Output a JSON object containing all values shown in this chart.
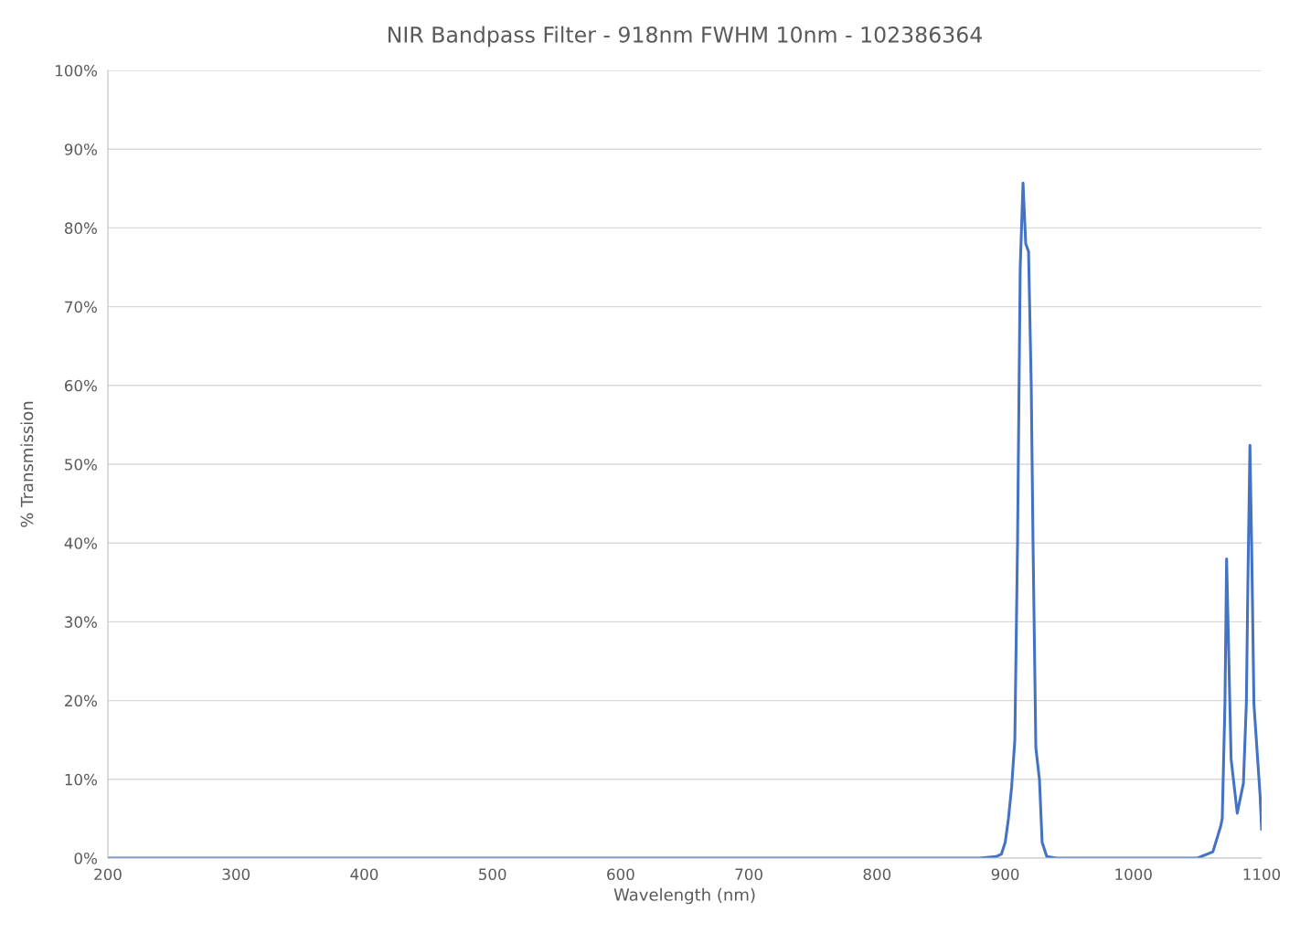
{
  "chart_data": {
    "type": "line",
    "title": "NIR Bandpass Filter - 918nm FWHM 10nm - 102386364",
    "xlabel": "Wavelength (nm)",
    "ylabel": "% Transmission",
    "x": [
      200,
      300,
      400,
      500,
      600,
      700,
      800,
      880,
      893,
      897,
      900,
      902.5,
      905,
      907.5,
      909.6,
      911.7,
      913.9,
      916,
      918.2,
      920.3,
      921.7,
      923.9,
      926.7,
      928.8,
      932.4,
      940,
      1000,
      1050,
      1062,
      1068,
      1069.3,
      1071.4,
      1072.7,
      1073.8,
      1076.2,
      1081,
      1085.8,
      1088.1,
      1089.3,
      1090.9,
      1092.3,
      1094,
      1096.4,
      1098.8,
      1100
    ],
    "series": [
      {
        "color": "#4472c4",
        "values": [
          0,
          0,
          0,
          0,
          0,
          0,
          0,
          0,
          0.2,
          0.5,
          2,
          5,
          9,
          15,
          40,
          75,
          85.7,
          78,
          77,
          60,
          40,
          14,
          10,
          2,
          0.2,
          0,
          0,
          0,
          0.8,
          4,
          5,
          19.6,
          38,
          30,
          12.6,
          5.7,
          9.5,
          19.6,
          35,
          52.4,
          39,
          19.6,
          13.8,
          8,
          3.7
        ]
      }
    ],
    "xlim": [
      200,
      1100
    ],
    "xticks": [
      200,
      300,
      400,
      500,
      600,
      700,
      800,
      900,
      1000,
      1100
    ],
    "ylim": [
      0,
      100
    ],
    "yticks": [
      {
        "value": 0,
        "label": "0%"
      },
      {
        "value": 10,
        "label": "10%"
      },
      {
        "value": 20,
        "label": "20%"
      },
      {
        "value": 30,
        "label": "30%"
      },
      {
        "value": 40,
        "label": "40%"
      },
      {
        "value": 50,
        "label": "50%"
      },
      {
        "value": 60,
        "label": "60%"
      },
      {
        "value": 70,
        "label": "70%"
      },
      {
        "value": 80,
        "label": "80%"
      },
      {
        "value": 90,
        "label": "90%"
      },
      {
        "value": 100,
        "label": "100%"
      }
    ],
    "grid": "y",
    "legend": false,
    "marker": "none",
    "line_style": "solid"
  }
}
